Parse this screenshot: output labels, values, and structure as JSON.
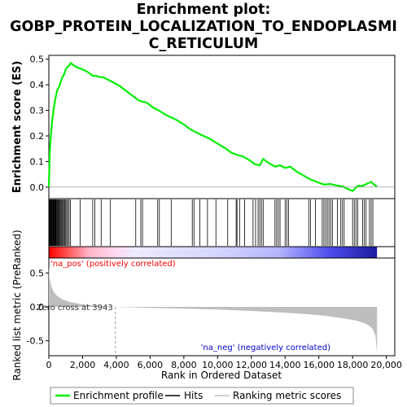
{
  "title_lines": [
    "Enrichment plot:",
    "GOBP_PROTEIN_LOCALIZATION_TO_ENDOPLASMI",
    "C_RETICULUM"
  ],
  "colors": {
    "es_line": "#00ee00",
    "hits": "#000000",
    "ranking_fill": "#bebebe",
    "pos_text": "#ff0000",
    "neg_text": "#0000cc",
    "zero_line": "#999999"
  },
  "chart_data": {
    "type": "line",
    "top_panel": {
      "ylabel": "Enrichment score (ES)",
      "ylim": [
        -0.045,
        0.515
      ],
      "yticks": [
        0.0,
        0.1,
        0.2,
        0.3,
        0.4,
        0.5
      ],
      "ytick_labels": [
        "0.0",
        "0.1",
        "0.2",
        "0.3",
        "0.4",
        "0.5"
      ],
      "series_name": "Enrichment profile",
      "points": [
        [
          0,
          0.0
        ],
        [
          60,
          0.14
        ],
        [
          120,
          0.2
        ],
        [
          200,
          0.26
        ],
        [
          300,
          0.31
        ],
        [
          400,
          0.35
        ],
        [
          500,
          0.38
        ],
        [
          600,
          0.39
        ],
        [
          700,
          0.41
        ],
        [
          800,
          0.43
        ],
        [
          900,
          0.44
        ],
        [
          1000,
          0.46
        ],
        [
          1100,
          0.47
        ],
        [
          1200,
          0.475
        ],
        [
          1300,
          0.485
        ],
        [
          1400,
          0.48
        ],
        [
          1600,
          0.47
        ],
        [
          1800,
          0.465
        ],
        [
          2000,
          0.46
        ],
        [
          2300,
          0.45
        ],
        [
          2600,
          0.435
        ],
        [
          2800,
          0.435
        ],
        [
          3000,
          0.43
        ],
        [
          3200,
          0.43
        ],
        [
          3500,
          0.42
        ],
        [
          3800,
          0.41
        ],
        [
          4200,
          0.395
        ],
        [
          4600,
          0.375
        ],
        [
          5000,
          0.355
        ],
        [
          5300,
          0.34
        ],
        [
          5500,
          0.335
        ],
        [
          5800,
          0.33
        ],
        [
          6200,
          0.31
        ],
        [
          6500,
          0.3
        ],
        [
          7000,
          0.28
        ],
        [
          7500,
          0.265
        ],
        [
          8000,
          0.245
        ],
        [
          8400,
          0.225
        ],
        [
          8700,
          0.215
        ],
        [
          9000,
          0.205
        ],
        [
          9500,
          0.19
        ],
        [
          10000,
          0.17
        ],
        [
          10500,
          0.15
        ],
        [
          10800,
          0.135
        ],
        [
          11200,
          0.125
        ],
        [
          11500,
          0.12
        ],
        [
          11900,
          0.105
        ],
        [
          12200,
          0.09
        ],
        [
          12500,
          0.085
        ],
        [
          12700,
          0.11
        ],
        [
          13000,
          0.095
        ],
        [
          13400,
          0.08
        ],
        [
          13700,
          0.085
        ],
        [
          14000,
          0.075
        ],
        [
          14300,
          0.08
        ],
        [
          14700,
          0.06
        ],
        [
          15100,
          0.045
        ],
        [
          15500,
          0.03
        ],
        [
          15900,
          0.02
        ],
        [
          16300,
          0.01
        ],
        [
          16700,
          0.012
        ],
        [
          17000,
          0.007
        ],
        [
          17400,
          0.003
        ],
        [
          17800,
          -0.01
        ],
        [
          18000,
          -0.015
        ],
        [
          18300,
          0.005
        ],
        [
          18600,
          0.005
        ],
        [
          18900,
          0.015
        ],
        [
          19100,
          0.02
        ],
        [
          19300,
          0.008
        ],
        [
          19450,
          0.002
        ]
      ]
    },
    "hits": [
      40,
      70,
      100,
      130,
      160,
      190,
      220,
      250,
      280,
      310,
      340,
      370,
      400,
      430,
      470,
      510,
      550,
      590,
      630,
      680,
      730,
      780,
      830,
      880,
      940,
      1000,
      1060,
      1120,
      1200,
      1280,
      1850,
      2600,
      2720,
      3100,
      3650,
      5150,
      5450,
      5550,
      6450,
      6550,
      7250,
      8500,
      8600,
      8950,
      9400,
      9900,
      10600,
      11100,
      11150,
      11300,
      11600,
      12100,
      12250,
      12400,
      12500,
      12600,
      12700,
      13400,
      13500,
      13600,
      13700,
      14000,
      14100,
      14200,
      15400,
      15500,
      15800,
      16200,
      16300,
      16400,
      16500,
      16600,
      16700,
      16800,
      17100,
      17300,
      17400,
      17500,
      18000,
      18100,
      18200,
      18300,
      18600,
      18700,
      18800,
      19000,
      19100,
      19200
    ],
    "bottom_panel": {
      "ylabel": "Ranked list metric (PreRanked)",
      "ylim": [
        -0.72,
        0.72
      ],
      "yticks": [
        0.5,
        0.0,
        -0.5
      ],
      "ytick_labels": [
        "0.5",
        "0.0",
        "-0.5"
      ],
      "series_name": "Ranking metric scores",
      "points": [
        [
          0,
          0.6
        ],
        [
          50,
          0.42
        ],
        [
          150,
          0.3
        ],
        [
          300,
          0.22
        ],
        [
          500,
          0.16
        ],
        [
          800,
          0.11
        ],
        [
          1200,
          0.075
        ],
        [
          1800,
          0.045
        ],
        [
          2500,
          0.025
        ],
        [
          3200,
          0.012
        ],
        [
          3943,
          0.0
        ],
        [
          6000,
          -0.015
        ],
        [
          8000,
          -0.025
        ],
        [
          10000,
          -0.04
        ],
        [
          12000,
          -0.06
        ],
        [
          14000,
          -0.085
        ],
        [
          15500,
          -0.11
        ],
        [
          16500,
          -0.135
        ],
        [
          17500,
          -0.17
        ],
        [
          18200,
          -0.2
        ],
        [
          18700,
          -0.24
        ],
        [
          19000,
          -0.28
        ],
        [
          19200,
          -0.33
        ],
        [
          19350,
          -0.42
        ],
        [
          19420,
          -0.6
        ],
        [
          19450,
          -0.68
        ]
      ],
      "zero_cross_label": "Zero cross at 3943",
      "zero_cross": 3943,
      "pos_label": "'na_pos' (positively correlated)",
      "neg_label": "'na_neg' (negatively correlated)"
    },
    "xaxis": {
      "label": "Rank in Ordered Dataset",
      "xlim": [
        0,
        20500
      ],
      "ticks": [
        0,
        2000,
        4000,
        6000,
        8000,
        10000,
        12000,
        14000,
        16000,
        18000,
        20000
      ],
      "tick_labels": [
        "0",
        "2,000",
        "4,000",
        "6,000",
        "8,000",
        "10,000",
        "12,000",
        "14,000",
        "16,000",
        "18,000",
        "20,000"
      ],
      "n_genes": 19450
    },
    "legend": {
      "placement": "bottom",
      "items": [
        {
          "label": "Enrichment profile",
          "color": "#00ee00"
        },
        {
          "label": "Hits",
          "color": "#000000"
        },
        {
          "label": "Ranking metric scores",
          "color": "#bebebe"
        }
      ]
    }
  }
}
